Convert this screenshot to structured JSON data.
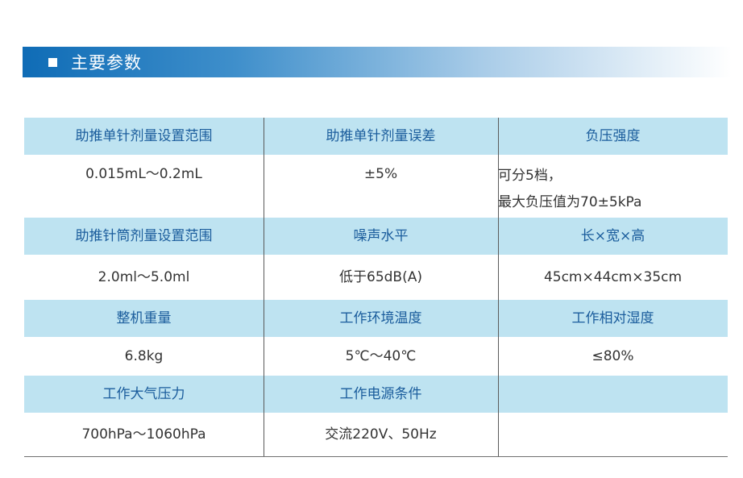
{
  "section": {
    "title": "主要参数"
  },
  "params": [
    {
      "headers": [
        "助推单针剂量设置范围",
        "助推单针剂量误差",
        "负压强度"
      ],
      "values": [
        "0.015mL～0.2mL",
        "±5%",
        [
          "可分5档，",
          "最大负压值为70±5kPa"
        ]
      ]
    },
    {
      "headers": [
        "助推针筒剂量设置范围",
        "噪声水平",
        "长×宽×高"
      ],
      "values": [
        "2.0ml～5.0ml",
        "低于65dB(A)",
        "45cm×44cm×35cm"
      ]
    },
    {
      "headers": [
        "整机重量",
        "工作环境温度",
        "工作相对湿度"
      ],
      "values": [
        "6.8kg",
        "5℃～40℃",
        "≤80%"
      ]
    },
    {
      "headers": [
        "工作大气压力",
        "工作电源条件",
        ""
      ],
      "values": [
        "700hPa～1060hPa",
        "交流220V、50Hz",
        ""
      ]
    }
  ]
}
